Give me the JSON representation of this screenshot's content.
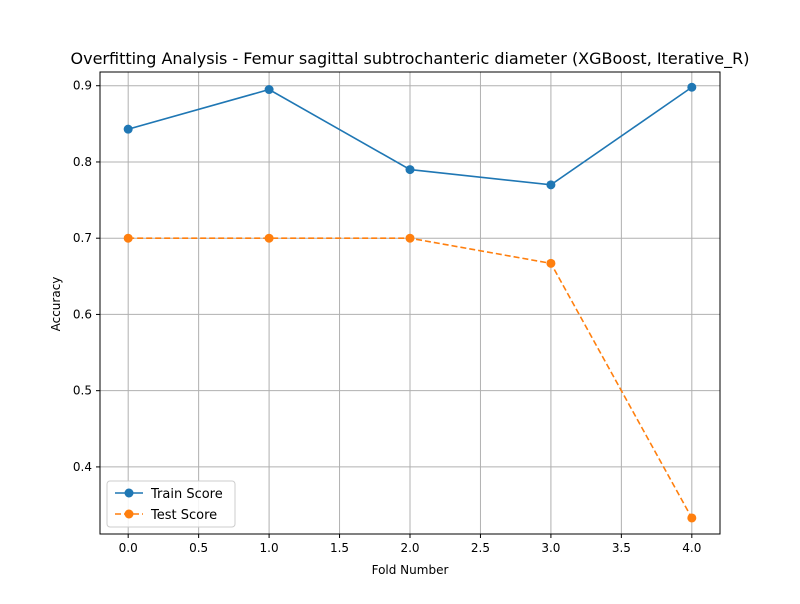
{
  "chart_data": {
    "type": "line",
    "title": "Overfitting Analysis - Femur sagittal subtrochanteric diameter (XGBoost, Iterative_R)",
    "xlabel": "Fold Number",
    "ylabel": "Accuracy",
    "x": [
      0,
      1,
      2,
      3,
      4
    ],
    "xlim": [
      -0.2,
      4.2
    ],
    "ylim": [
      0.312,
      0.918
    ],
    "xticks": [
      0.0,
      0.5,
      1.0,
      1.5,
      2.0,
      2.5,
      3.0,
      3.5,
      4.0
    ],
    "xtick_labels": [
      "0.0",
      "0.5",
      "1.0",
      "1.5",
      "2.0",
      "2.5",
      "3.0",
      "3.5",
      "4.0"
    ],
    "yticks": [
      0.4,
      0.5,
      0.6,
      0.7,
      0.8,
      0.9
    ],
    "ytick_labels": [
      "0.4",
      "0.5",
      "0.6",
      "0.7",
      "0.8",
      "0.9"
    ],
    "grid": true,
    "legend_position": "lower-left",
    "series": [
      {
        "name": "Train Score",
        "values": [
          0.843,
          0.895,
          0.79,
          0.77,
          0.898
        ],
        "color": "#1f77b4",
        "dash": "solid",
        "marker": "circle"
      },
      {
        "name": "Test Score",
        "values": [
          0.7,
          0.7,
          0.7,
          0.667,
          0.333
        ],
        "color": "#ff7f0e",
        "dash": "dashed",
        "marker": "circle"
      }
    ]
  }
}
